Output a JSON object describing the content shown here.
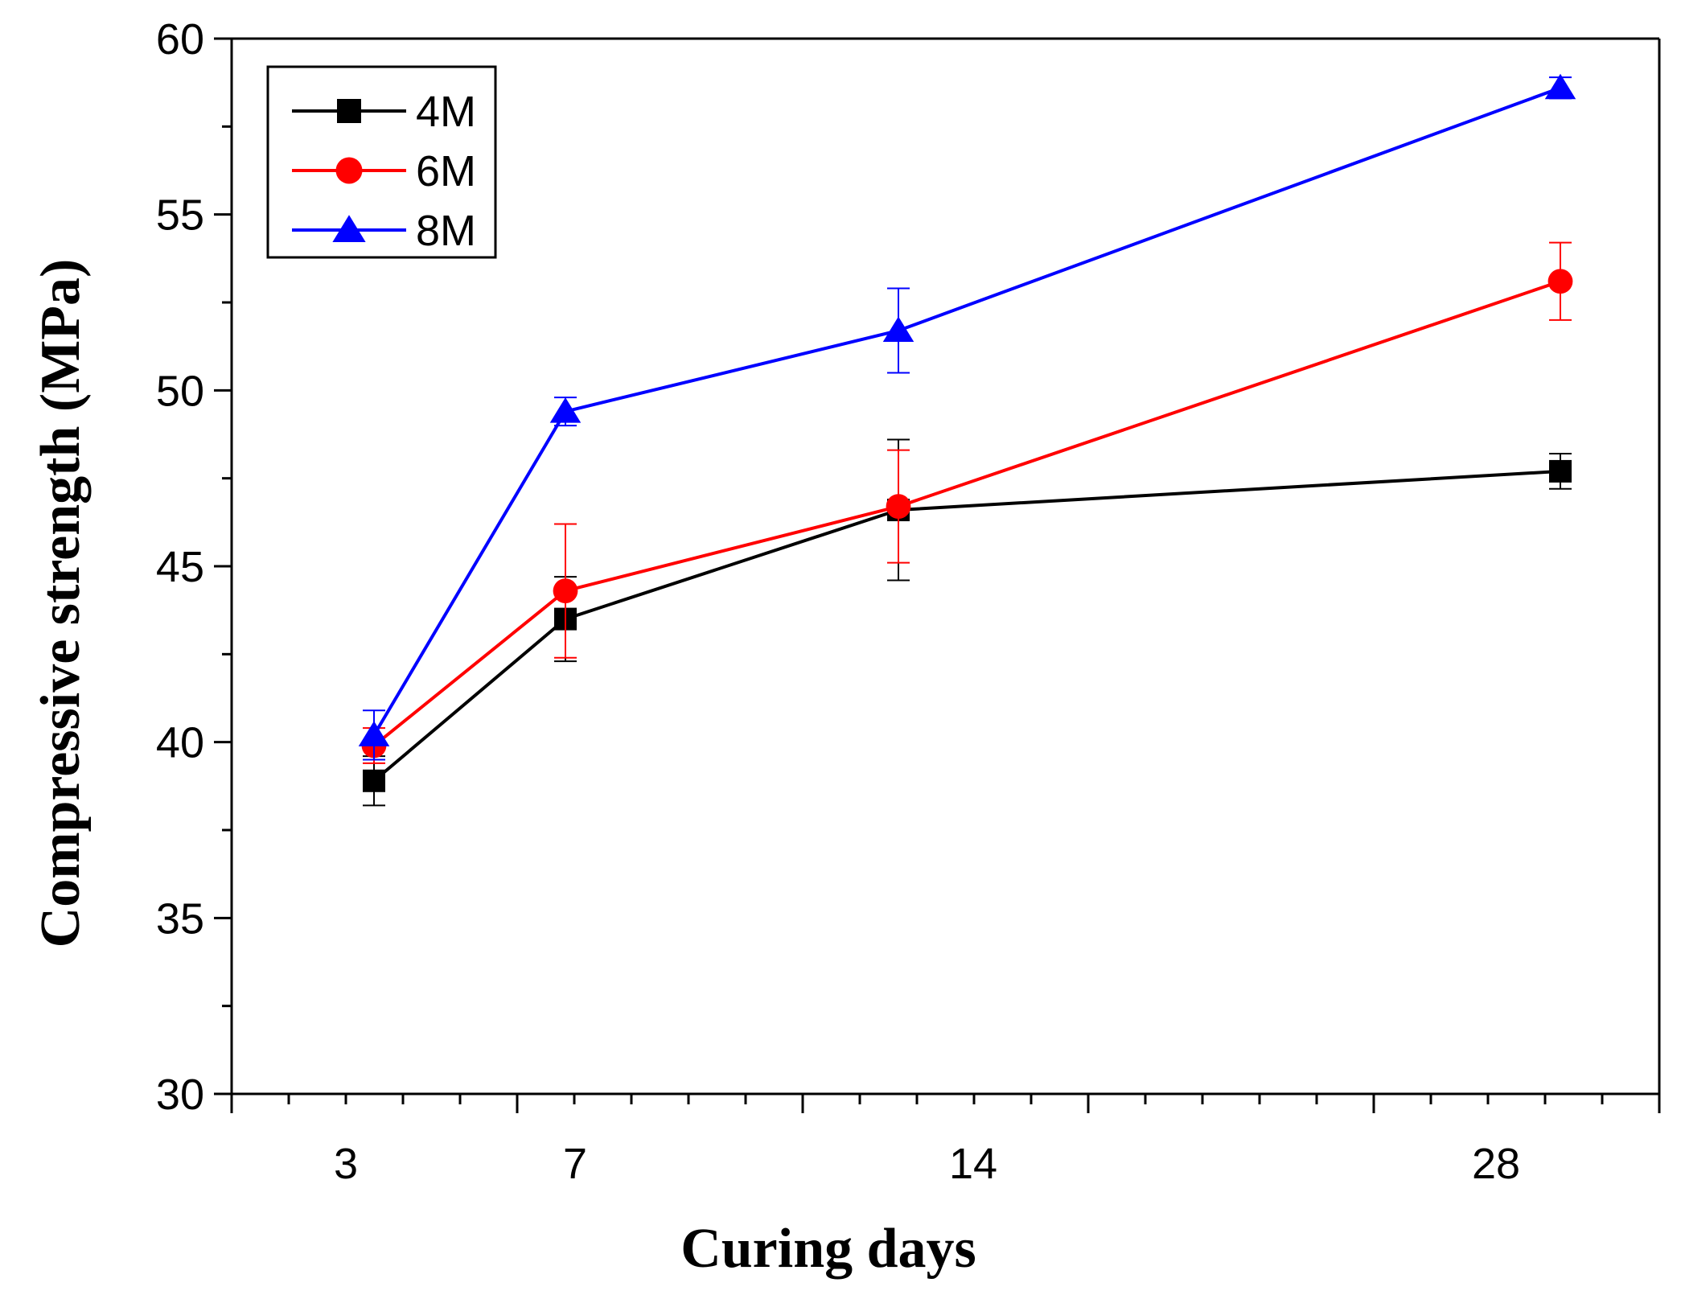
{
  "chart_data": {
    "type": "line",
    "xlabel": "Curing days",
    "ylabel": "Compressive strength (MPa)",
    "x_tick_labels": [
      "3",
      "7",
      "14",
      "28"
    ],
    "ylim": [
      30,
      60
    ],
    "y_ticks": [
      30,
      35,
      40,
      45,
      50,
      55,
      60
    ],
    "legend_position": "top-left",
    "grid": false,
    "series": [
      {
        "name": "4M",
        "color": "#000000",
        "marker": "square",
        "points": [
          {
            "x": "3",
            "y": 38.9,
            "err": 0.7
          },
          {
            "x": "7",
            "y": 43.5,
            "err": 1.2
          },
          {
            "x": "14",
            "y": 46.6,
            "err": 2.0
          },
          {
            "x": "28",
            "y": 47.7,
            "err": 0.5
          }
        ]
      },
      {
        "name": "6M",
        "color": "#ff0000",
        "marker": "circle",
        "points": [
          {
            "x": "3",
            "y": 39.9,
            "err": 0.5
          },
          {
            "x": "7",
            "y": 44.3,
            "err": 1.9
          },
          {
            "x": "14",
            "y": 46.7,
            "err": 1.6
          },
          {
            "x": "28",
            "y": 53.1,
            "err": 1.1
          }
        ]
      },
      {
        "name": "8M",
        "color": "#0000ff",
        "marker": "triangle",
        "points": [
          {
            "x": "3",
            "y": 40.2,
            "err": 0.7
          },
          {
            "x": "7",
            "y": 49.4,
            "err": 0.4
          },
          {
            "x": "14",
            "y": 51.7,
            "err": 1.2
          },
          {
            "x": "28",
            "y": 58.6,
            "err": 0.3
          }
        ]
      }
    ]
  }
}
